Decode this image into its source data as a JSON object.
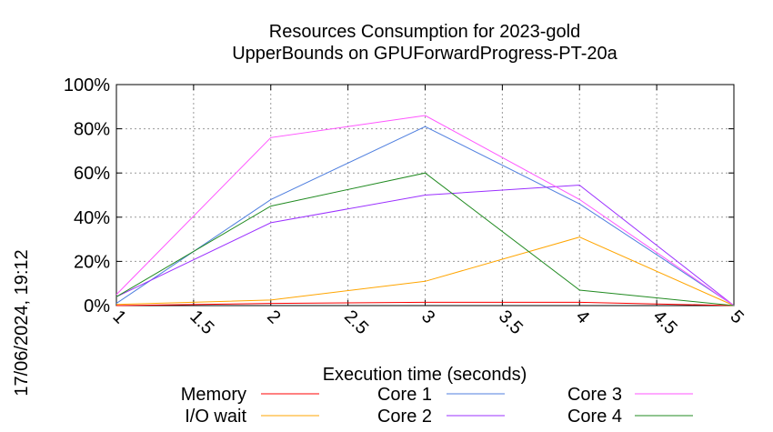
{
  "chart_data": {
    "type": "line",
    "title": "Resources Consumption for 2023-gold",
    "subtitle": "UpperBounds on GPUForwardProgress-PT-20a",
    "xlabel": "Execution time (seconds)",
    "ylabel": "",
    "side_label": "17/06/2024, 19:12",
    "xlim": [
      1,
      5
    ],
    "ylim": [
      0,
      100
    ],
    "x_ticks": [
      "1",
      "1.5",
      "2",
      "2.5",
      "3",
      "3.5",
      "4",
      "4.5",
      "5"
    ],
    "y_ticks": [
      "0%",
      "20%",
      "40%",
      "60%",
      "80%",
      "100%"
    ],
    "grid": true,
    "legend_position": "bottom",
    "x": [
      1,
      2,
      3,
      4,
      5
    ],
    "series": [
      {
        "name": "Memory",
        "color": "#ff0000",
        "values": [
          0,
          1,
          1.5,
          1.5,
          0
        ]
      },
      {
        "name": "I/O wait",
        "color": "#ffa500",
        "values": [
          0.5,
          2.5,
          11,
          31,
          0
        ]
      },
      {
        "name": "Core 1",
        "color": "#4f7fdf",
        "values": [
          1,
          48,
          81,
          46,
          0
        ]
      },
      {
        "name": "Core 2",
        "color": "#9b30ff",
        "values": [
          4,
          37.5,
          50,
          54.5,
          0
        ]
      },
      {
        "name": "Core 3",
        "color": "#ff55ff",
        "values": [
          5,
          76,
          86,
          48,
          0
        ]
      },
      {
        "name": "Core 4",
        "color": "#228b22",
        "values": [
          4,
          45,
          60,
          7,
          0
        ]
      }
    ]
  }
}
